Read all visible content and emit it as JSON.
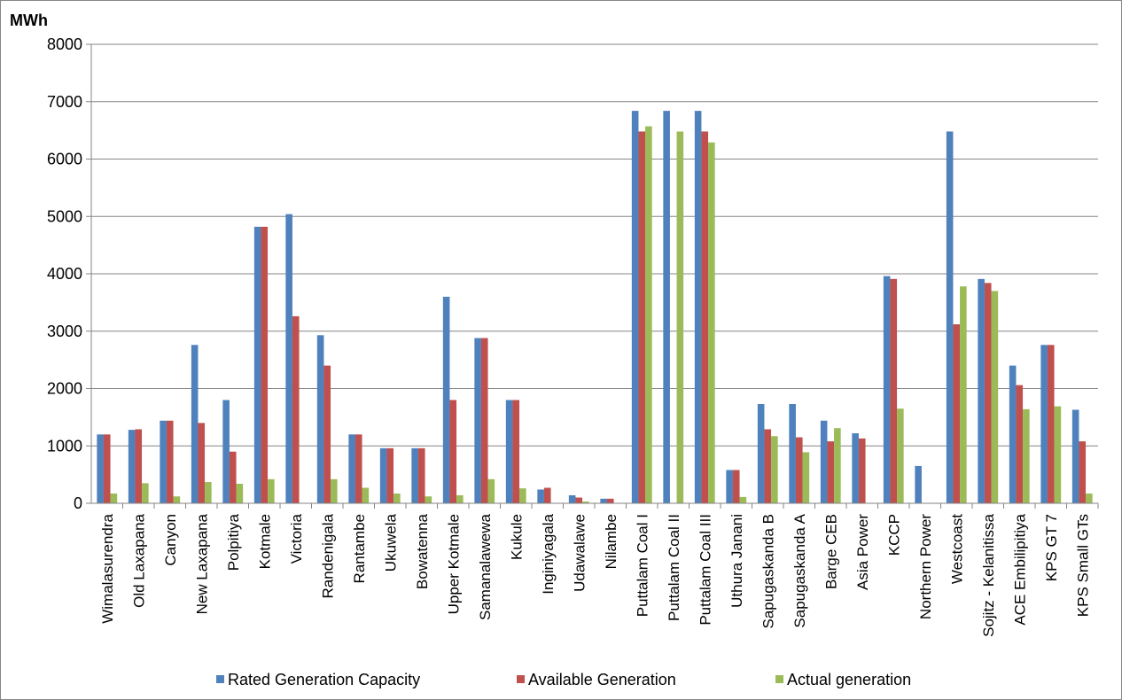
{
  "chart_data": {
    "type": "bar",
    "unit_label": "MWh",
    "ylim": [
      0,
      8000
    ],
    "yticks": [
      "0",
      "1000",
      "2000",
      "3000",
      "4000",
      "5000",
      "6000",
      "7000",
      "8000"
    ],
    "grid": true,
    "legend_position": "bottom",
    "categories": [
      "Wimalasurendra",
      "Old Laxapana",
      "Canyon",
      "New Laxapana",
      "Polpitiya",
      "Kotmale",
      "Victoria",
      "Randenigala",
      "Rantambe",
      "Ukuwela",
      "Bowatenna",
      "Upper Kotmale",
      "Samanalawewa",
      "Kukule",
      "Inginiyagala",
      "Udawalawe",
      "Nilambe",
      "Puttalam Coal I",
      "Puttalam Coal II",
      "Puttalam Coal III",
      "Uthura Janani",
      "Sapugaskanda B",
      "Sapugaskanda A",
      "Barge CEB",
      "Asia Power",
      "KCCP",
      "Northern Power",
      "Westcoast",
      "Sojitz - Kelanitissa",
      "ACE Embilipitiya",
      "KPS GT 7",
      "KPS Small GTs"
    ],
    "series": [
      {
        "name": "Rated Generation Capacity",
        "color": "#4f81bd",
        "values": [
          1200,
          1280,
          1440,
          2760,
          1800,
          4820,
          5040,
          2930,
          1200,
          960,
          960,
          3600,
          2880,
          1800,
          240,
          140,
          80,
          6840,
          6840,
          6840,
          580,
          1730,
          1730,
          1440,
          1220,
          3960,
          650,
          6480,
          3910,
          2400,
          2760,
          1630
        ]
      },
      {
        "name": "Available Generation",
        "color": "#c0504d",
        "values": [
          1200,
          1290,
          1440,
          1400,
          900,
          4820,
          3260,
          2400,
          1200,
          960,
          960,
          1800,
          2880,
          1800,
          270,
          100,
          80,
          6480,
          0,
          6480,
          580,
          1290,
          1150,
          1080,
          1130,
          3910,
          0,
          3120,
          3840,
          2060,
          2760,
          1080
        ]
      },
      {
        "name": "Actual generation",
        "color": "#9bbb59",
        "values": [
          170,
          350,
          120,
          370,
          340,
          420,
          0,
          420,
          270,
          170,
          120,
          140,
          420,
          260,
          0,
          30,
          0,
          6570,
          6480,
          6290,
          110,
          1170,
          890,
          1310,
          0,
          1650,
          0,
          3780,
          3700,
          1640,
          1690,
          170
        ]
      }
    ]
  }
}
